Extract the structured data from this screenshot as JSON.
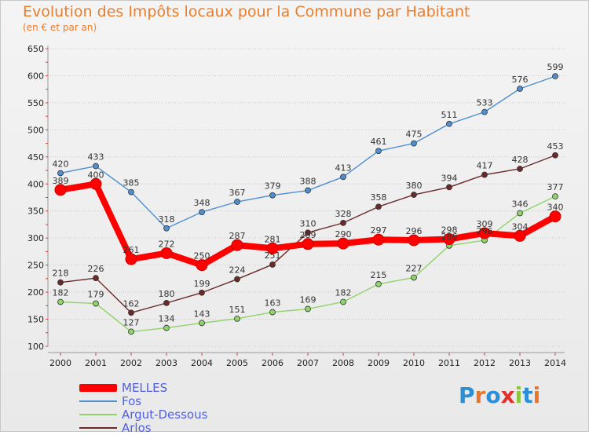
{
  "header": {
    "title": "Evolution des Impôts locaux pour la Commune par Habitant",
    "subtitle": "(en € et par an)"
  },
  "logo": {
    "text": "Proxiti"
  },
  "colors": {
    "melles": "#ff0000",
    "fos": "#4f8fcf",
    "argut": "#8fd36a",
    "arlos": "#6a2a2a",
    "grid": "#c9c9c9",
    "axis_text": "#222222"
  },
  "chart_data": {
    "type": "line",
    "title": "Evolution des Impôts locaux pour la Commune par Habitant",
    "subtitle": "(en € et par an)",
    "xlabel": "",
    "ylabel": "",
    "ylim": [
      100,
      650
    ],
    "yticks": [
      100,
      150,
      200,
      250,
      300,
      350,
      400,
      450,
      500,
      550,
      600,
      650
    ],
    "x": [
      "2000",
      "2001",
      "2002",
      "2003",
      "2004",
      "2005",
      "2006",
      "2007",
      "2008",
      "2009",
      "2010",
      "2011",
      "2012",
      "2013",
      "2014"
    ],
    "grid": "horizontal",
    "legend_position": "bottom-left",
    "series": [
      {
        "name": "MELLES",
        "color": "#ff0000",
        "values": [
          389,
          400,
          261,
          272,
          250,
          287,
          281,
          289,
          290,
          297,
          296,
          298,
          309,
          304,
          340
        ]
      },
      {
        "name": "Fos",
        "color": "#4f8fcf",
        "values": [
          420,
          433,
          385,
          318,
          348,
          367,
          379,
          388,
          413,
          461,
          475,
          511,
          533,
          576,
          599
        ]
      },
      {
        "name": "Argut-Dessous",
        "color": "#8fd36a",
        "values": [
          182,
          179,
          127,
          134,
          143,
          151,
          163,
          169,
          182,
          215,
          227,
          286,
          296,
          346,
          377
        ]
      },
      {
        "name": "Arlos",
        "color": "#6a2a2a",
        "values": [
          218,
          226,
          162,
          180,
          199,
          224,
          251,
          310,
          328,
          358,
          380,
          394,
          417,
          428,
          453
        ]
      }
    ]
  }
}
